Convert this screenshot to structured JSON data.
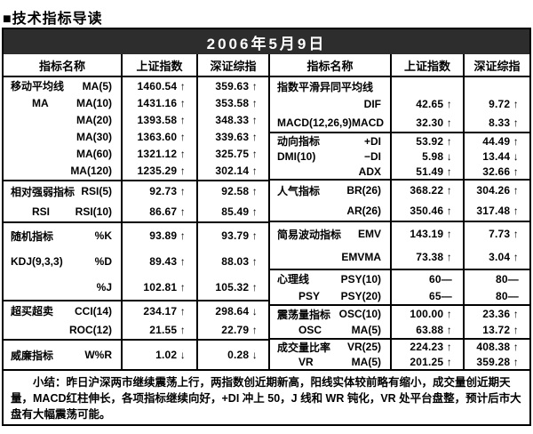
{
  "title": "■技术指标导读",
  "colors": {
    "date_bar_bg": "#2d2d2d",
    "date_bar_text": "#ffffff",
    "border": "#000000",
    "background": "#ffffff"
  },
  "table": {
    "date": "2006年5月9日",
    "headers": [
      "指标名称",
      "上证指数",
      "深证综指",
      "指标名称",
      "上证指数",
      "深证综指"
    ],
    "left_blocks": [
      {
        "id": "ma",
        "rows": [
          {
            "g": "移动平均线",
            "s": "MA(5)",
            "sh": "1460.54 ↑",
            "sz": "359.63 ↑"
          },
          {
            "g": "MA",
            "s": "MA(10)",
            "sh": "1431.16 ↑",
            "sz": "353.58 ↑"
          },
          {
            "g": "",
            "s": "MA(20)",
            "sh": "1393.58 ↑",
            "sz": "348.33 ↑"
          },
          {
            "g": "",
            "s": "MA(30)",
            "sh": "1363.60 ↑",
            "sz": "339.63 ↑"
          },
          {
            "g": "",
            "s": "MA(60)",
            "sh": "1321.12 ↑",
            "sz": "325.75 ↑"
          },
          {
            "g": "",
            "s": "MA(120)",
            "sh": "1235.29 ↑",
            "sz": "302.14 ↑"
          }
        ]
      },
      {
        "id": "rsi",
        "rows": [
          {
            "g": "相对强弱指标",
            "s": "RSI(5)",
            "sh": "92.73 ↑",
            "sz": "92.58 ↑"
          },
          {
            "g": "RSI",
            "s": "RSI(10)",
            "sh": "86.67 ↑",
            "sz": "85.49 ↑"
          }
        ]
      },
      {
        "id": "kdj",
        "rows": [
          {
            "g": "随机指标",
            "s": "%K",
            "sh": "93.89 ↑",
            "sz": "93.79 ↑"
          },
          {
            "g": "KDJ(9,3,3)",
            "s": "%D",
            "sh": "89.43 ↑",
            "sz": "88.03 ↑"
          },
          {
            "g": "",
            "s": "%J",
            "sh": "102.81 ↑",
            "sz": "105.32 ↑"
          }
        ]
      },
      {
        "id": "cci",
        "rows": [
          {
            "g": "超买超卖",
            "s": "CCI(14)",
            "sh": "234.17 ↑",
            "sz": "298.64 ↓"
          },
          {
            "g": "",
            "s": "ROC(12)",
            "sh": "21.55 ↑",
            "sz": "22.79 ↑"
          }
        ]
      },
      {
        "id": "wr",
        "rows": [
          {
            "g": "威廉指标",
            "s": "W%R",
            "sh": "1.02 ↓",
            "sz": "0.28 ↓"
          }
        ]
      }
    ],
    "right_blocks": [
      {
        "id": "macd",
        "rows": [
          {
            "g": "指数平滑异同平均线",
            "s": "",
            "sh": "",
            "sz": ""
          },
          {
            "g": "",
            "s": "DIF",
            "sh": "42.65 ↑",
            "sz": "9.72 ↑"
          },
          {
            "g": "MACD(12,26,9)",
            "s": "MACD",
            "sh": "32.30 ↑",
            "sz": "8.33 ↑"
          }
        ]
      },
      {
        "id": "dmi",
        "rows": [
          {
            "g": "动向指标",
            "s": "+DI",
            "sh": "53.92 ↑",
            "sz": "44.49 ↑"
          },
          {
            "g": "DMI(10)",
            "s": "−DI",
            "sh": "5.98 ↓",
            "sz": "13.44 ↓"
          },
          {
            "g": "",
            "s": "ADX",
            "sh": "51.49 ↑",
            "sz": "32.66 ↑"
          }
        ]
      },
      {
        "id": "brar",
        "rows": [
          {
            "g": "人气指标",
            "s": "BR(26)",
            "sh": "368.22 ↑",
            "sz": "304.26 ↑"
          },
          {
            "g": "",
            "s": "AR(26)",
            "sh": "350.46 ↑",
            "sz": "317.48 ↑"
          }
        ]
      },
      {
        "id": "emv",
        "rows": [
          {
            "g": "简易波动指标",
            "s": "EMV",
            "sh": "143.19 ↑",
            "sz": "7.73 ↑"
          },
          {
            "g": "",
            "s": "EMVMA",
            "sh": "73.38 ↑",
            "sz": "3.04 ↑"
          }
        ]
      },
      {
        "id": "psy",
        "rows": [
          {
            "g": "心理线",
            "s": "PSY(10)",
            "sh": "60—",
            "sz": "80—"
          },
          {
            "g": "PSY",
            "s": "PSY(20)",
            "sh": "65—",
            "sz": "80—"
          }
        ]
      },
      {
        "id": "osc",
        "rows": [
          {
            "g": "震荡量指标",
            "s": "OSC(10)",
            "sh": "100.00 ↑",
            "sz": "23.36 ↑"
          },
          {
            "g": "OSC",
            "s": "MA(5)",
            "sh": "63.88 ↑",
            "sz": "13.72 ↑"
          }
        ]
      },
      {
        "id": "vr",
        "rows": [
          {
            "g": "成交量比率",
            "s": "VR(25)",
            "sh": "224.23 ↑",
            "sz": "408.38 ↑"
          },
          {
            "g": "VR",
            "s": "MA(5)",
            "sh": "201.25 ↑",
            "sz": "359.28 ↑"
          }
        ]
      }
    ],
    "note_label": "小结：",
    "note_body": "昨日沪深两市继续震荡上行，两指数创近期新高，阳线实体较前略有缩小，成交量创近期天量，MACD红柱伸长，各项指标继续向好，+DI 冲上 50，J 线和 WR 钝化，VR 处平台盘整，预计后市大盘有大幅震荡可能。"
  }
}
